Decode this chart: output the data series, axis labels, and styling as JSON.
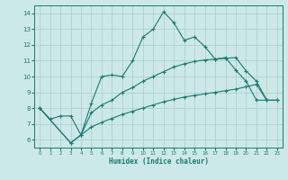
{
  "xlabel": "Humidex (Indice chaleur)",
  "background_color": "#cce8e8",
  "grid_color": "#aacccc",
  "line_color": "#1a7a6e",
  "xlim": [
    -0.5,
    23.5
  ],
  "ylim": [
    5.5,
    14.5
  ],
  "yticks": [
    6,
    7,
    8,
    9,
    10,
    11,
    12,
    13,
    14
  ],
  "xticks": [
    0,
    1,
    2,
    3,
    4,
    5,
    6,
    7,
    8,
    9,
    10,
    11,
    12,
    13,
    14,
    15,
    16,
    17,
    18,
    19,
    20,
    21,
    22,
    23
  ],
  "line1_x": [
    0,
    1,
    2,
    3,
    4,
    5,
    6,
    7,
    8,
    9,
    10,
    11,
    12,
    13,
    14,
    15,
    16,
    17,
    18,
    19,
    20,
    21,
    22
  ],
  "line1_y": [
    8.0,
    7.3,
    7.5,
    7.5,
    6.3,
    8.3,
    10.0,
    10.1,
    10.0,
    11.0,
    12.5,
    13.0,
    14.1,
    13.4,
    12.3,
    12.5,
    11.9,
    11.1,
    11.2,
    10.4,
    9.7,
    8.5,
    8.5
  ],
  "line2_x": [
    0,
    3,
    4,
    5,
    6,
    7,
    8,
    9,
    10,
    11,
    12,
    13,
    14,
    15,
    16,
    17,
    18,
    19,
    20,
    21,
    22,
    23
  ],
  "line2_y": [
    8.0,
    5.8,
    6.3,
    7.7,
    8.2,
    8.5,
    9.0,
    9.3,
    9.7,
    10.0,
    10.3,
    10.6,
    10.8,
    10.95,
    11.05,
    11.1,
    11.15,
    11.2,
    10.35,
    9.7,
    8.5,
    8.5
  ],
  "line3_x": [
    0,
    3,
    4,
    5,
    6,
    7,
    8,
    9,
    10,
    11,
    12,
    13,
    14,
    15,
    16,
    17,
    18,
    19,
    20,
    21,
    22,
    23
  ],
  "line3_y": [
    8.0,
    5.8,
    6.3,
    6.8,
    7.1,
    7.35,
    7.6,
    7.8,
    8.0,
    8.2,
    8.4,
    8.55,
    8.7,
    8.8,
    8.9,
    9.0,
    9.1,
    9.2,
    9.35,
    9.5,
    8.5,
    8.5
  ]
}
